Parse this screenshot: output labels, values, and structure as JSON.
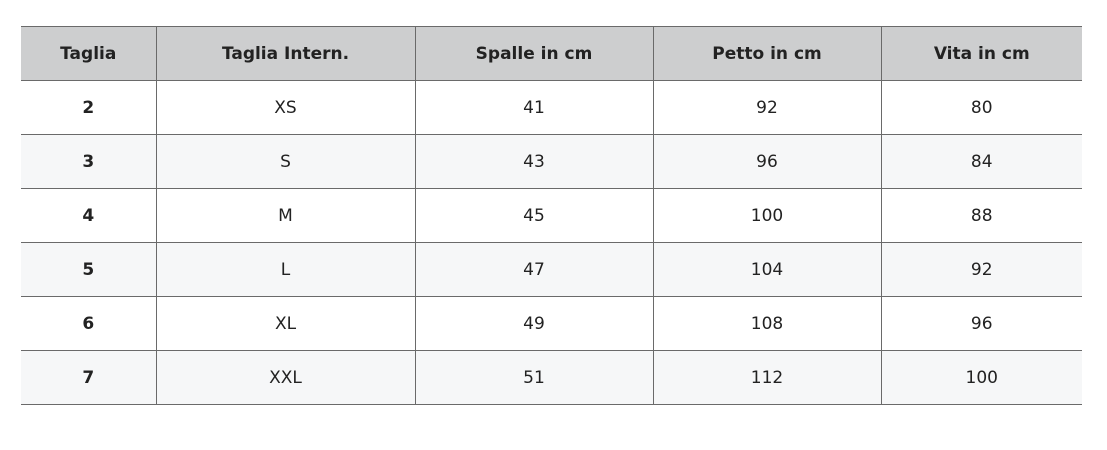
{
  "table": {
    "headers": [
      "Taglia",
      "Taglia Intern.",
      "Spalle in cm",
      "Petto in cm",
      "Vita in cm"
    ],
    "rows": [
      [
        "2",
        "XS",
        "41",
        "92",
        "80"
      ],
      [
        "3",
        "S",
        "43",
        "96",
        "84"
      ],
      [
        "4",
        "M",
        "45",
        "100",
        "88"
      ],
      [
        "5",
        "L",
        "47",
        "104",
        "92"
      ],
      [
        "6",
        "XL",
        "49",
        "108",
        "96"
      ],
      [
        "7",
        "XXL",
        "51",
        "112",
        "100"
      ]
    ]
  },
  "colors": {
    "header_bg": "#cdcecf",
    "alt_row_bg": "#f6f7f8",
    "border": "#6a6a6a"
  }
}
